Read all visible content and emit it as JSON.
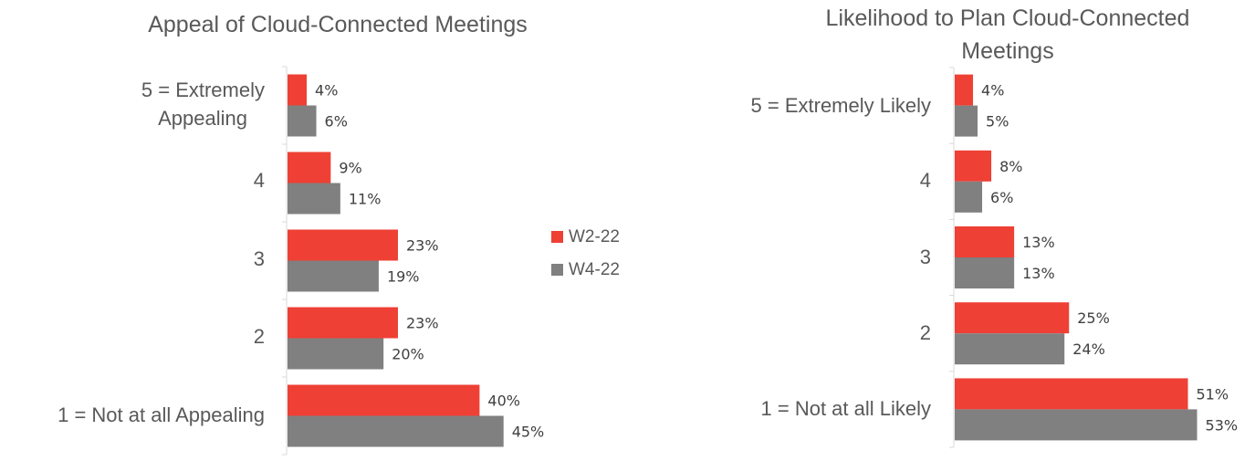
{
  "colors": {
    "W2-22": "#ee4035",
    "W4-22": "#808080"
  },
  "legend": [
    "W2-22",
    "W4-22"
  ],
  "chart_data": [
    {
      "type": "bar",
      "orientation": "horizontal",
      "title": "Appeal of Cloud-Connected Meetings",
      "categories": [
        "5 = Extremely Appealing",
        "4",
        "3",
        "2",
        "1 = Not at all Appealing"
      ],
      "series": [
        {
          "name": "W2-22",
          "values": [
            4,
            9,
            23,
            23,
            40
          ]
        },
        {
          "name": "W4-22",
          "values": [
            6,
            11,
            19,
            20,
            45
          ]
        }
      ],
      "value_format": "percent",
      "xlim": [
        0,
        60
      ],
      "grid": false,
      "legend_position": "right"
    },
    {
      "type": "bar",
      "orientation": "horizontal",
      "title": "Likelihood to Plan Cloud-Connected Meetings",
      "categories": [
        "5 = Extremely Likely",
        "4",
        "3",
        "2",
        "1 = Not at all Likely"
      ],
      "series": [
        {
          "name": "W2-22",
          "values": [
            4,
            8,
            13,
            25,
            51
          ]
        },
        {
          "name": "W4-22",
          "values": [
            5,
            6,
            13,
            24,
            53
          ]
        }
      ],
      "value_format": "percent",
      "xlim": [
        0,
        60
      ],
      "grid": false
    }
  ]
}
